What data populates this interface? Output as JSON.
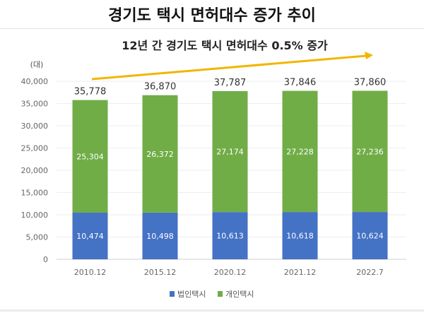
{
  "title": "경기도 택시 면허대수 증가 추이",
  "chart_data": {
    "type": "bar",
    "stacked": true,
    "annotation": "12년 간 경기도 택시 면허대수 0.5% 증가",
    "ylabel": "(대)",
    "ylim": [
      0,
      40000
    ],
    "yticks": [
      "0",
      "5,000",
      "10,000",
      "15,000",
      "20,000",
      "25,000",
      "30,000",
      "35,000",
      "40,000"
    ],
    "ytick_values": [
      0,
      5000,
      10000,
      15000,
      20000,
      25000,
      30000,
      35000,
      40000
    ],
    "grid": true,
    "legend_position": "bottom",
    "categories": [
      "2010.12",
      "2015.12",
      "2020.12",
      "2021.12",
      "2022.7"
    ],
    "series": [
      {
        "name": "법인택시",
        "color": "#4472c4",
        "values": [
          10474,
          10498,
          10613,
          10618,
          10624
        ],
        "labels": [
          "10,474",
          "10,498",
          "10,613",
          "10,618",
          "10,624"
        ]
      },
      {
        "name": "개인택시",
        "color": "#70ad47",
        "values": [
          25304,
          26372,
          27174,
          27228,
          27236
        ],
        "labels": [
          "25,304",
          "26,372",
          "27,174",
          "27,228",
          "27,236"
        ]
      }
    ],
    "totals": [
      35778,
      36870,
      37787,
      37846,
      37860
    ],
    "total_labels": [
      "35,778",
      "36,870",
      "37,787",
      "37,846",
      "37,860"
    ],
    "arrow_color": "#f2b600"
  }
}
